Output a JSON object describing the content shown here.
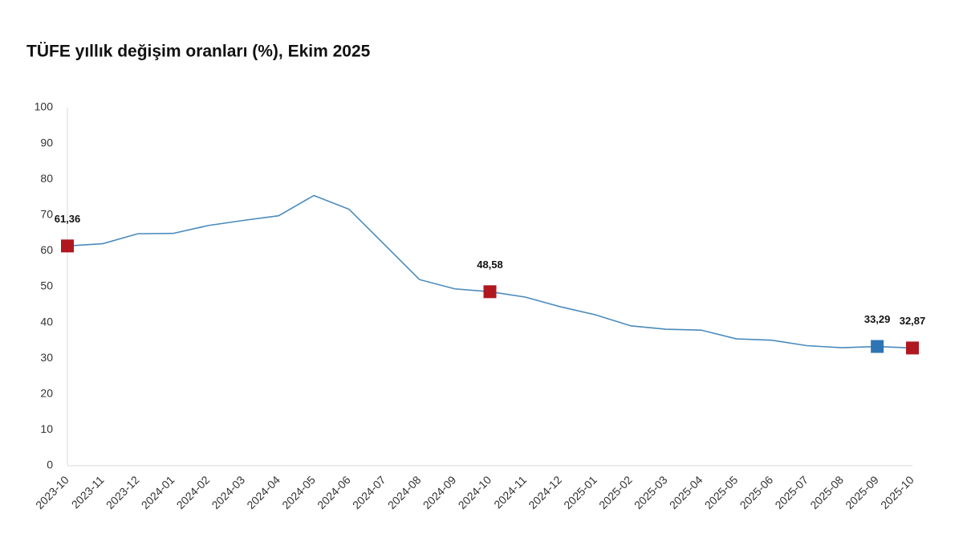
{
  "chart_data": {
    "type": "line",
    "title": "TÜFE yıllık değişim oranları (%), Ekim 2025",
    "categories": [
      "2023-10",
      "2023-11",
      "2023-12",
      "2024-01",
      "2024-02",
      "2024-03",
      "2024-04",
      "2024-05",
      "2024-06",
      "2024-07",
      "2024-08",
      "2024-09",
      "2024-10",
      "2024-11",
      "2024-12",
      "2025-01",
      "2025-02",
      "2025-03",
      "2025-04",
      "2025-05",
      "2025-06",
      "2025-07",
      "2025-08",
      "2025-09",
      "2025-10"
    ],
    "values": [
      61.36,
      61.98,
      64.77,
      64.86,
      67.07,
      68.5,
      69.8,
      75.45,
      71.6,
      61.78,
      51.97,
      49.38,
      48.58,
      47.09,
      44.38,
      42.12,
      39.05,
      38.1,
      37.86,
      35.41,
      35.05,
      33.52,
      32.95,
      33.29,
      32.87
    ],
    "value_labels": [
      "61,36",
      null,
      null,
      null,
      null,
      null,
      null,
      null,
      null,
      null,
      null,
      null,
      "48,58",
      null,
      null,
      null,
      null,
      null,
      null,
      null,
      null,
      null,
      null,
      "33,29",
      "32,87"
    ],
    "marker_colors": [
      "#b0171f",
      null,
      null,
      null,
      null,
      null,
      null,
      null,
      null,
      null,
      null,
      null,
      "#b0171f",
      null,
      null,
      null,
      null,
      null,
      null,
      null,
      null,
      null,
      null,
      "#2e75b6",
      "#b0171f"
    ],
    "color": "#4a8bbd",
    "ylim": [
      0,
      100
    ],
    "yticks": [
      0,
      10,
      20,
      30,
      40,
      50,
      60,
      70,
      80,
      90,
      100
    ],
    "grid": false
  }
}
